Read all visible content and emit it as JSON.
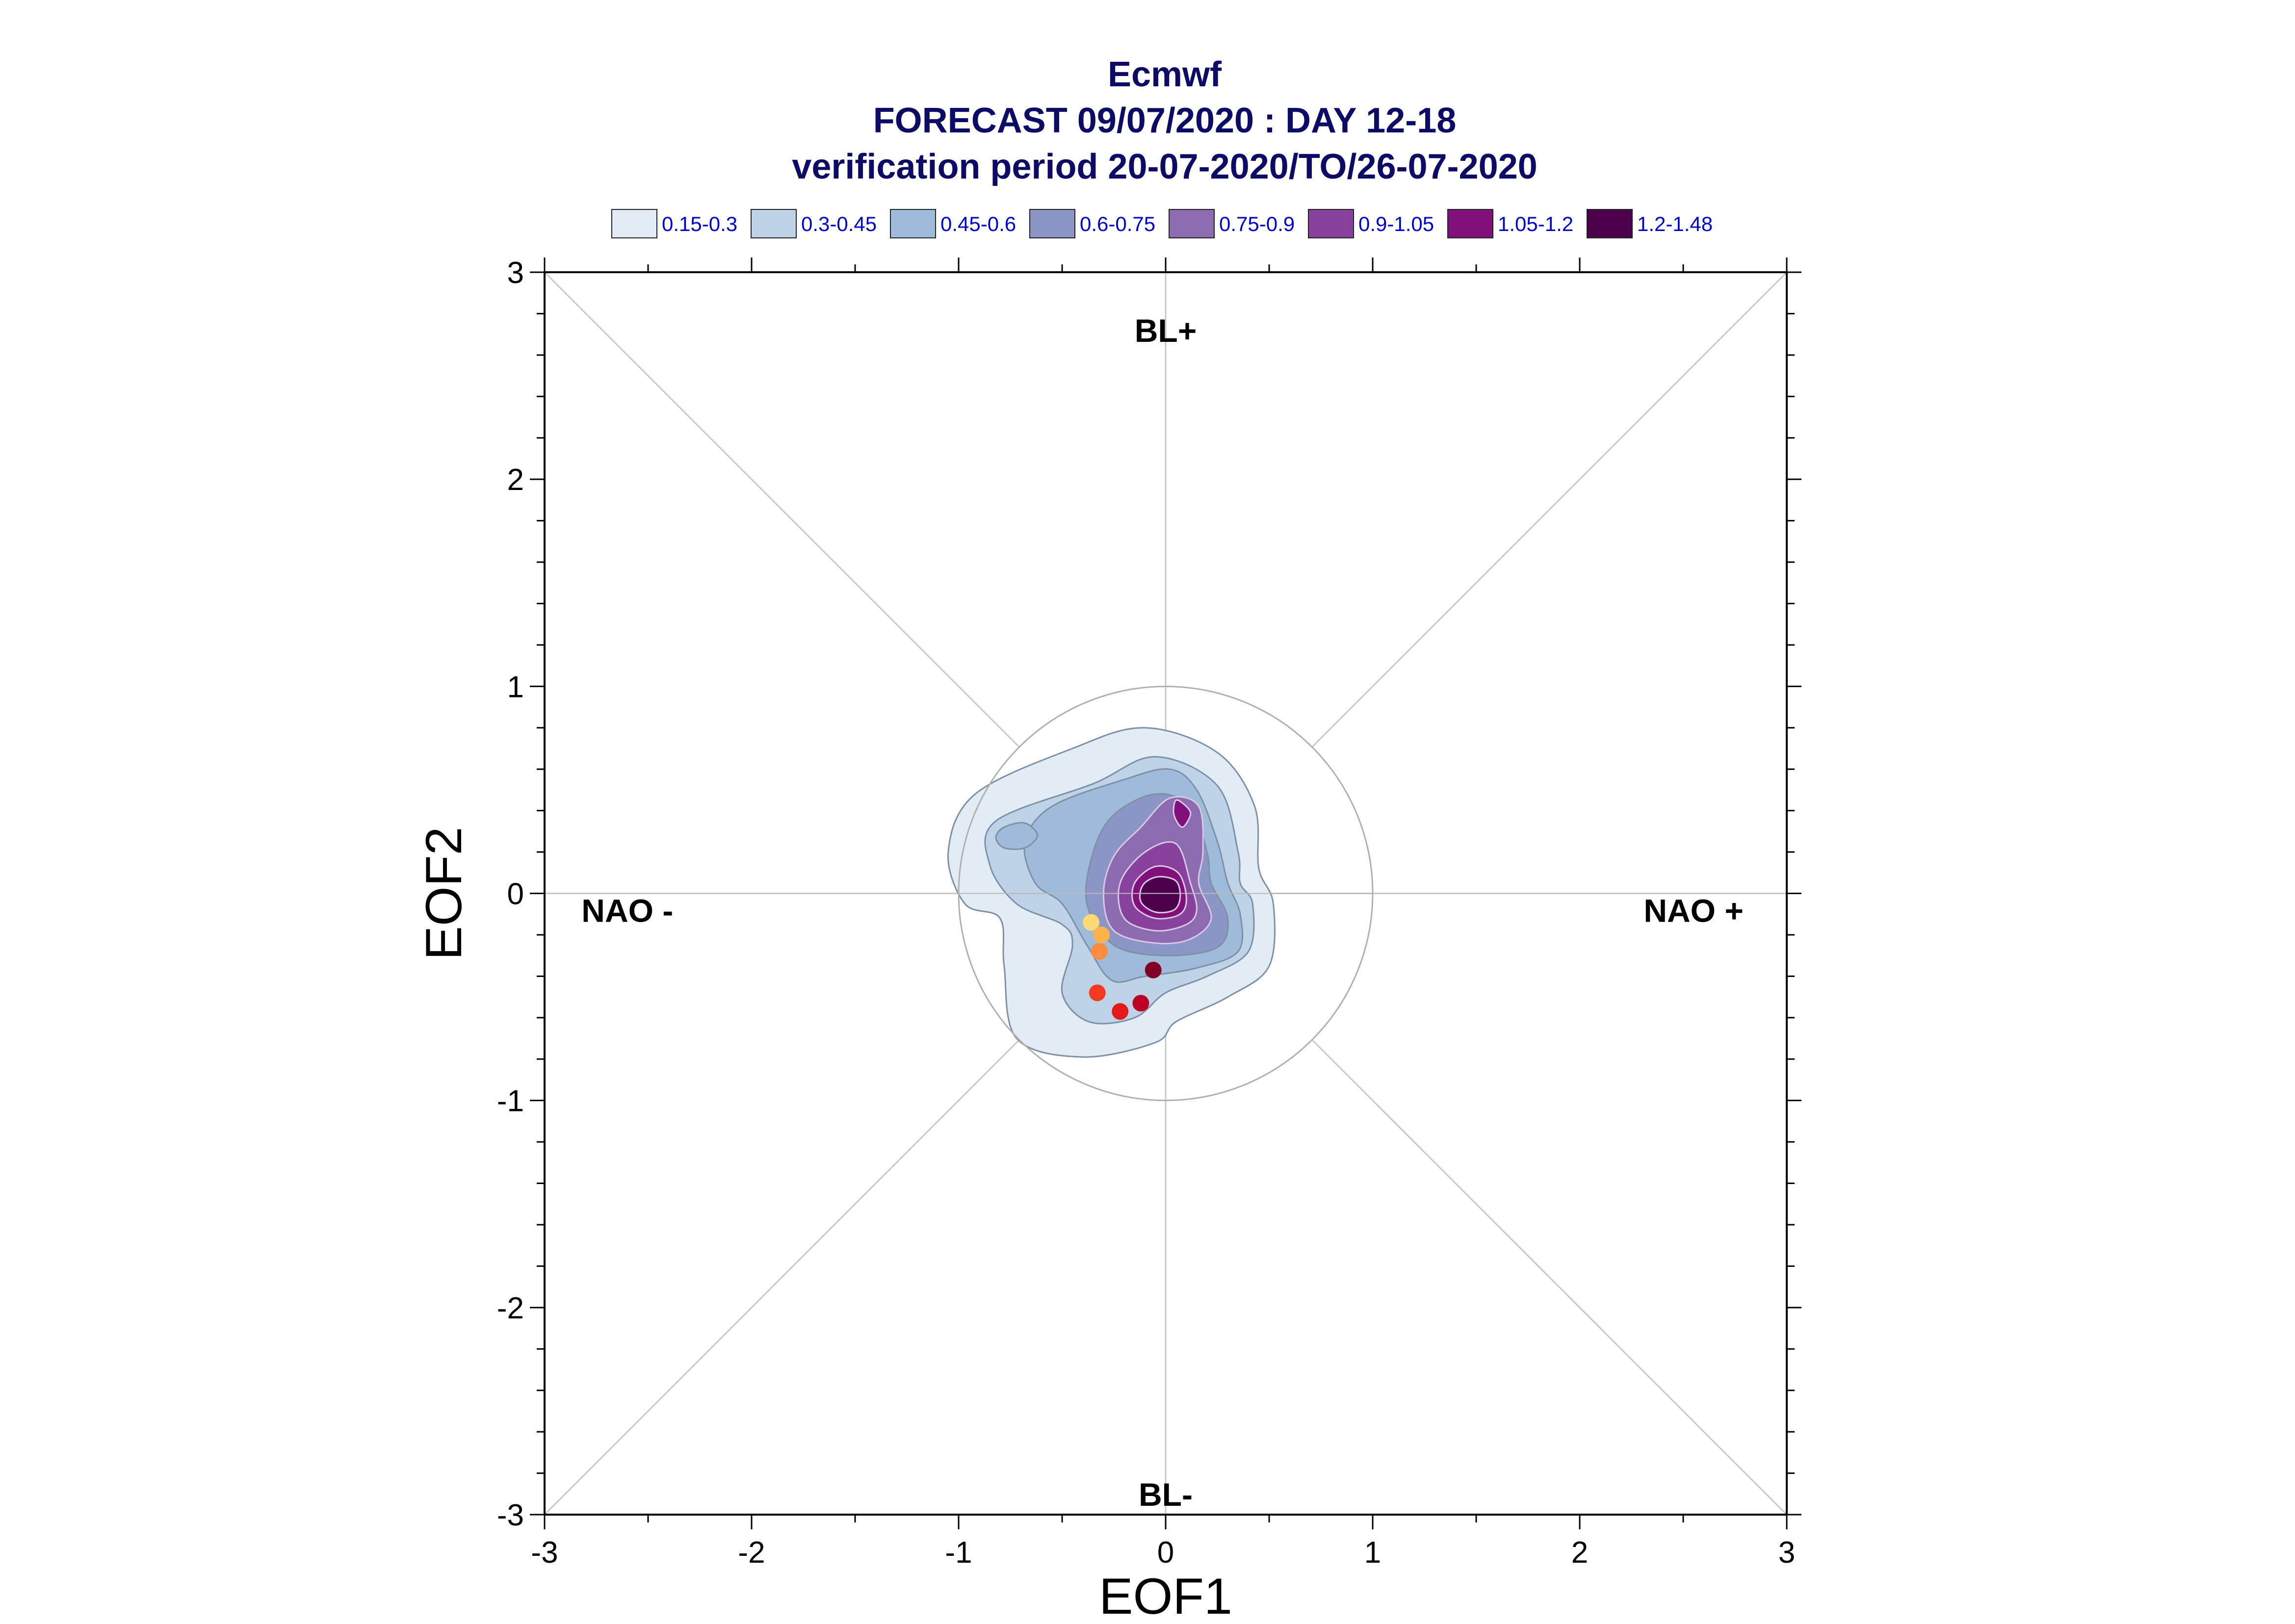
{
  "chart_data": {
    "type": "contour",
    "title_lines": [
      "Ecmwf",
      "FORECAST 09/07/2020 : DAY 12-18",
      "verification period 20-07-2020/TO/26-07-2020"
    ],
    "xlabel": "EOF1",
    "ylabel": "EOF2",
    "xlim": [
      -3,
      3
    ],
    "ylim": [
      -3,
      3
    ],
    "xticks": [
      -3,
      -2,
      -1,
      0,
      1,
      2,
      3
    ],
    "yticks": [
      -3,
      -2,
      -1,
      0,
      1,
      2,
      3
    ],
    "tick_labels_x": [
      "-3",
      "-2",
      "-1",
      "0",
      "1",
      "2",
      "3"
    ],
    "tick_labels_y": [
      "-3",
      "-2",
      "-1",
      "0",
      "1",
      "2",
      "3"
    ],
    "reference_circle_radius": 1,
    "regime_labels": [
      {
        "text": "BL+",
        "x": 0,
        "y": 2.72
      },
      {
        "text": "BL-",
        "x": 0,
        "y": -2.9
      },
      {
        "text": "NAO -",
        "x": -2.6,
        "y": -0.08
      },
      {
        "text": "NAO +",
        "x": 2.55,
        "y": -0.08
      }
    ],
    "legend": [
      {
        "label": "0.15-0.3",
        "color": "#e1ecf4"
      },
      {
        "label": "0.3-0.45",
        "color": "#bfd3e6"
      },
      {
        "label": "0.45-0.6",
        "color": "#9ebcda"
      },
      {
        "label": "0.6-0.75",
        "color": "#8c96c6"
      },
      {
        "label": "0.75-0.9",
        "color": "#8c6bb1"
      },
      {
        "label": "0.9-1.05",
        "color": "#88419d"
      },
      {
        "label": "1.05-1.2",
        "color": "#810f7c"
      },
      {
        "label": "1.2-1.48",
        "color": "#4d004b"
      }
    ],
    "contour_levels": [
      {
        "level": "0.15-0.3",
        "path": [
          [
            -0.45,
            0.7
          ],
          [
            -0.1,
            0.8
          ],
          [
            0.25,
            0.68
          ],
          [
            0.43,
            0.42
          ],
          [
            0.45,
            0.12
          ],
          [
            0.52,
            -0.05
          ],
          [
            0.5,
            -0.35
          ],
          [
            0.3,
            -0.5
          ],
          [
            0.05,
            -0.62
          ],
          [
            -0.05,
            -0.72
          ],
          [
            -0.4,
            -0.79
          ],
          [
            -0.72,
            -0.7
          ],
          [
            -0.78,
            -0.35
          ],
          [
            -0.8,
            -0.12
          ],
          [
            -0.97,
            -0.05
          ],
          [
            -1.05,
            0.2
          ],
          [
            -0.92,
            0.48
          ]
        ]
      },
      {
        "level": "0.3-0.45",
        "path": [
          [
            -0.35,
            0.53
          ],
          [
            -0.05,
            0.66
          ],
          [
            0.25,
            0.52
          ],
          [
            0.35,
            0.2
          ],
          [
            0.36,
            0.05
          ],
          [
            0.42,
            -0.05
          ],
          [
            0.4,
            -0.28
          ],
          [
            0.2,
            -0.4
          ],
          [
            0.0,
            -0.48
          ],
          [
            -0.15,
            -0.6
          ],
          [
            -0.37,
            -0.62
          ],
          [
            -0.5,
            -0.48
          ],
          [
            -0.45,
            -0.25
          ],
          [
            -0.5,
            -0.15
          ],
          [
            -0.72,
            -0.05
          ],
          [
            -0.85,
            0.14
          ],
          [
            -0.82,
            0.35
          ]
        ]
      },
      {
        "level": "0.45-0.6",
        "path": [
          [
            -0.2,
            0.55
          ],
          [
            0.02,
            0.6
          ],
          [
            0.15,
            0.5
          ],
          [
            0.25,
            0.25
          ],
          [
            0.3,
            0.05
          ],
          [
            0.36,
            -0.1
          ],
          [
            0.35,
            -0.28
          ],
          [
            0.15,
            -0.36
          ],
          [
            -0.1,
            -0.4
          ],
          [
            -0.26,
            -0.42
          ],
          [
            -0.38,
            -0.25
          ],
          [
            -0.5,
            -0.05
          ],
          [
            -0.63,
            0.05
          ],
          [
            -0.68,
            0.25
          ],
          [
            -0.55,
            0.42
          ]
        ]
      },
      {
        "level": "0.6-0.75",
        "path": [
          [
            -0.25,
            0.38
          ],
          [
            -0.05,
            0.48
          ],
          [
            0.12,
            0.42
          ],
          [
            0.2,
            0.2
          ],
          [
            0.22,
            0.05
          ],
          [
            0.3,
            -0.12
          ],
          [
            0.25,
            -0.26
          ],
          [
            0.0,
            -0.3
          ],
          [
            -0.25,
            -0.25
          ],
          [
            -0.38,
            -0.05
          ],
          [
            -0.35,
            0.2
          ]
        ]
      },
      {
        "level": "0.75-0.9",
        "path": [
          [
            -0.12,
            0.32
          ],
          [
            0.02,
            0.46
          ],
          [
            0.16,
            0.42
          ],
          [
            0.18,
            0.2
          ],
          [
            0.16,
            0.05
          ],
          [
            0.22,
            -0.12
          ],
          [
            0.12,
            -0.22
          ],
          [
            -0.05,
            -0.24
          ],
          [
            -0.25,
            -0.18
          ],
          [
            -0.3,
            0.0
          ],
          [
            -0.25,
            0.18
          ]
        ]
      },
      {
        "level": "0.9-1.05",
        "path": [
          [
            -0.1,
            0.2
          ],
          [
            0.05,
            0.24
          ],
          [
            0.12,
            0.05
          ],
          [
            0.15,
            -0.08
          ],
          [
            0.1,
            -0.15
          ],
          [
            -0.05,
            -0.18
          ],
          [
            -0.2,
            -0.12
          ],
          [
            -0.22,
            0.05
          ]
        ]
      },
      {
        "level": "1.05-1.2",
        "path": [
          [
            -0.05,
            0.13
          ],
          [
            0.06,
            0.1
          ],
          [
            0.1,
            -0.02
          ],
          [
            0.07,
            -0.1
          ],
          [
            -0.05,
            -0.12
          ],
          [
            -0.15,
            -0.06
          ],
          [
            -0.15,
            0.05
          ]
        ]
      },
      {
        "level": "1.2-1.48",
        "path": [
          [
            -0.04,
            0.08
          ],
          [
            0.05,
            0.06
          ],
          [
            0.07,
            -0.02
          ],
          [
            0.04,
            -0.08
          ],
          [
            -0.05,
            -0.09
          ],
          [
            -0.12,
            -0.04
          ],
          [
            -0.11,
            0.04
          ]
        ]
      }
    ],
    "secondary_blobs": [
      {
        "level": "0.45-0.6",
        "path": [
          [
            -0.78,
            0.32
          ],
          [
            -0.68,
            0.34
          ],
          [
            -0.62,
            0.28
          ],
          [
            -0.68,
            0.22
          ],
          [
            -0.78,
            0.22
          ],
          [
            -0.82,
            0.27
          ]
        ]
      },
      {
        "level": "1.05-1.2",
        "path": [
          [
            0.05,
            0.45
          ],
          [
            0.1,
            0.42
          ],
          [
            0.12,
            0.38
          ],
          [
            0.08,
            0.32
          ],
          [
            0.04,
            0.38
          ]
        ]
      }
    ],
    "points": [
      {
        "x": -0.36,
        "y": -0.14,
        "color": "#fed976"
      },
      {
        "x": -0.31,
        "y": -0.2,
        "color": "#feb24c"
      },
      {
        "x": -0.32,
        "y": -0.28,
        "color": "#fd8d3c"
      },
      {
        "x": -0.33,
        "y": -0.48,
        "color": "#f03b20"
      },
      {
        "x": -0.22,
        "y": -0.57,
        "color": "#e31a1c"
      },
      {
        "x": -0.12,
        "y": -0.53,
        "color": "#bd0026"
      },
      {
        "x": -0.06,
        "y": -0.37,
        "color": "#800026"
      }
    ],
    "grid": false
  }
}
